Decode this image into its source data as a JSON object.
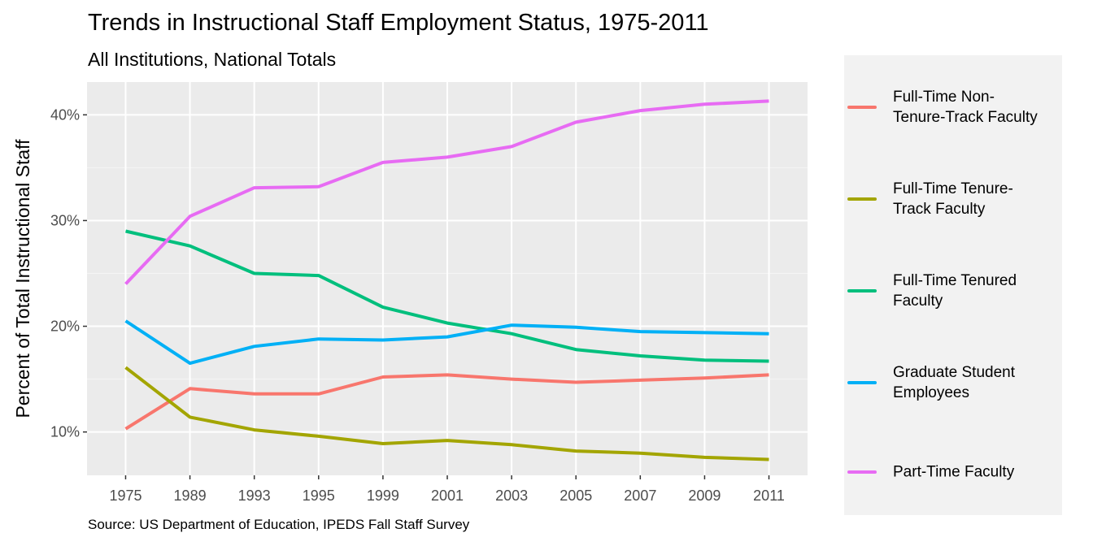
{
  "chart_data": {
    "type": "line",
    "title": "Trends in Instructional Staff Employment Status, 1975-2011",
    "subtitle": "All Institutions, National Totals",
    "caption": "Source: US Department of Education, IPEDS Fall Staff Survey",
    "xlabel": "",
    "ylabel": "Percent of Total Instructional Staff",
    "categories": [
      "1975",
      "1989",
      "1993",
      "1995",
      "1999",
      "2001",
      "2003",
      "2005",
      "2007",
      "2009",
      "2011"
    ],
    "y_ticks": [
      10,
      20,
      30,
      40
    ],
    "y_tick_labels": [
      "10%",
      "20%",
      "30%",
      "40%"
    ],
    "ylim": [
      5.9,
      43.1
    ],
    "grid": true,
    "legend_position": "right",
    "series": [
      {
        "name": "Full-Time Non-\nTenure-Track Faculty",
        "color": "#F8766D",
        "values": [
          10.3,
          14.1,
          13.6,
          13.6,
          15.2,
          15.4,
          15.0,
          14.7,
          14.9,
          15.1,
          15.4
        ]
      },
      {
        "name": "Full-Time Tenure-\nTrack Faculty",
        "color": "#A3A500",
        "values": [
          16.1,
          11.4,
          10.2,
          9.6,
          8.9,
          9.2,
          8.8,
          8.2,
          8.0,
          7.6,
          7.4
        ]
      },
      {
        "name": "Full-Time Tenured\nFaculty",
        "color": "#00BF7D",
        "values": [
          29.0,
          27.6,
          25.0,
          24.8,
          21.8,
          20.3,
          19.3,
          17.8,
          17.2,
          16.8,
          16.7
        ]
      },
      {
        "name": "Graduate Student\nEmployees",
        "color": "#00B0F6",
        "values": [
          20.5,
          16.5,
          18.1,
          18.8,
          18.7,
          19.0,
          20.1,
          19.9,
          19.5,
          19.4,
          19.3
        ]
      },
      {
        "name": "Part-Time Faculty",
        "color": "#E76BF3",
        "values": [
          24.0,
          30.4,
          33.1,
          33.2,
          35.5,
          36.0,
          37.0,
          39.3,
          40.4,
          41.0,
          41.3
        ]
      }
    ]
  },
  "colors": {
    "panel_background": "#ebebeb",
    "grid_major": "#ffffff",
    "grid_minor": "#f5f5f5",
    "legend_background": "#f2f2f2",
    "tick_text": "#4d4d4d"
  }
}
